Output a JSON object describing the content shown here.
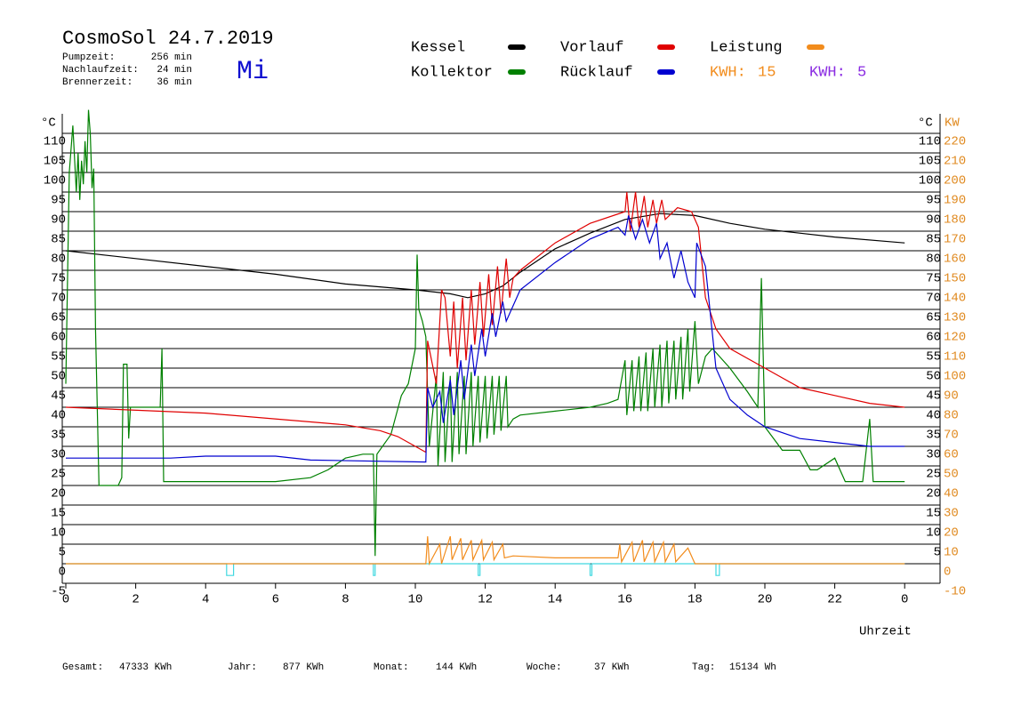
{
  "chart_data": {
    "type": "line",
    "title": "CosmoSol 24.7.2019",
    "weekday": "Mi",
    "info": [
      {
        "label": "Pumpzeit:",
        "value": "256 min"
      },
      {
        "label": "Nachlaufzeit:",
        "value": "24 min"
      },
      {
        "label": "Brennerzeit:",
        "value": "36 min"
      }
    ],
    "kwh": [
      {
        "label": "KWH:",
        "value": 15,
        "color": "#f28c1c"
      },
      {
        "label": "KWH:",
        "value": 5,
        "color": "#8a2be2"
      }
    ],
    "x_label": "Uhrzeit",
    "y_label": "°C",
    "y2_label": "KW",
    "xlim": [
      0,
      25
    ],
    "xticks": [
      0,
      2,
      4,
      6,
      8,
      10,
      12,
      14,
      16,
      18,
      20,
      22,
      {
        "value": 24,
        "label": "0"
      }
    ],
    "ylim": [
      -5,
      115
    ],
    "yticks": [
      110,
      105,
      100,
      95,
      90,
      85,
      80,
      75,
      70,
      65,
      60,
      55,
      50,
      45,
      40,
      35,
      30,
      25,
      20,
      15,
      10,
      5,
      0,
      -5
    ],
    "yticks_right": [
      110,
      105,
      100,
      95,
      90,
      85,
      80,
      75,
      70,
      65,
      60,
      55,
      50,
      45,
      40,
      35,
      30,
      25,
      20,
      15,
      10,
      5
    ],
    "y2lim": [
      -10,
      230
    ],
    "y2ticks": [
      220,
      210,
      200,
      190,
      180,
      170,
      160,
      150,
      140,
      130,
      120,
      110,
      100,
      90,
      80,
      70,
      60,
      50,
      40,
      30,
      20,
      10,
      0,
      -10
    ],
    "grid": true,
    "series": [
      {
        "name": "Kessel",
        "color": "#000000",
        "x": [
          0,
          2,
          4,
          6,
          8,
          10,
          11,
          11.5,
          12,
          12.5,
          13,
          14,
          15,
          16,
          17,
          18,
          19,
          20,
          22,
          24
        ],
        "values": [
          80,
          78,
          76,
          74,
          71.5,
          70,
          69,
          68,
          69,
          71,
          74.5,
          80.5,
          84.5,
          88,
          89.5,
          89,
          87,
          85.5,
          83.5,
          82
        ]
      },
      {
        "name": "Kollektor",
        "color": "#008000",
        "x": [
          0,
          0.1,
          0.2,
          0.3,
          0.35,
          0.4,
          0.45,
          0.5,
          0.55,
          0.6,
          0.65,
          0.7,
          0.75,
          0.8,
          0.85,
          0.95,
          1.5,
          1.6,
          1.65,
          1.75,
          1.8,
          1.85,
          1.9,
          2.7,
          2.75,
          2.8,
          4,
          6,
          7,
          7.5,
          8,
          8.5,
          8.8,
          8.85,
          8.9,
          9.3,
          9.6,
          9.8,
          10,
          10.05,
          10.1,
          10.2,
          10.3,
          10.4,
          10.6,
          10.65,
          10.8,
          10.85,
          11,
          11.05,
          11.2,
          11.25,
          11.4,
          11.45,
          11.6,
          11.65,
          11.8,
          11.85,
          12,
          12.05,
          12.2,
          12.25,
          12.4,
          12.45,
          12.6,
          12.65,
          12.8,
          13,
          14,
          15,
          15.5,
          15.8,
          16,
          16.05,
          16.2,
          16.25,
          16.4,
          16.45,
          16.6,
          16.65,
          16.8,
          16.85,
          17,
          17.05,
          17.2,
          17.25,
          17.4,
          17.45,
          17.6,
          17.65,
          17.8,
          17.85,
          18,
          18.1,
          18.3,
          18.5,
          19,
          19.5,
          19.8,
          19.9,
          20,
          20.5,
          20.8,
          21,
          21.3,
          21.5,
          22,
          22.3,
          22.8,
          23,
          23.1,
          24
        ],
        "values": [
          46,
          100,
          112,
          95,
          105,
          93,
          103,
          97,
          108,
          100,
          116,
          110,
          96,
          101,
          60,
          20,
          20,
          22,
          51,
          51,
          32,
          40,
          40,
          40,
          55,
          21,
          21,
          21,
          22,
          24,
          27,
          28,
          28,
          2,
          28,
          33,
          43,
          46,
          55,
          79,
          65,
          62,
          58,
          30,
          48,
          25,
          49,
          26,
          48,
          26,
          49,
          28,
          48,
          28,
          49,
          30,
          48,
          31,
          48,
          32,
          48,
          33,
          48,
          34,
          48,
          35,
          37,
          38,
          39,
          40,
          41,
          42,
          52,
          38,
          52,
          39,
          53,
          39,
          54,
          39,
          55,
          40,
          56,
          40,
          57,
          41,
          57,
          42,
          58,
          42,
          60,
          44,
          62,
          46,
          53,
          55,
          50,
          44,
          40,
          73,
          35,
          29,
          29,
          29,
          24,
          24,
          27,
          21,
          21,
          37,
          21,
          21
        ]
      },
      {
        "name": "Vorlauf",
        "color": "#e00000",
        "x": [
          0,
          4,
          8,
          9,
          9.5,
          10,
          10.3,
          10.35,
          10.6,
          10.75,
          10.85,
          11,
          11.1,
          11.2,
          11.35,
          11.45,
          11.6,
          11.7,
          11.85,
          11.95,
          12.1,
          12.2,
          12.35,
          12.45,
          12.6,
          12.7,
          12.8,
          13,
          14,
          15,
          16,
          16.05,
          16.15,
          16.3,
          16.4,
          16.55,
          16.65,
          16.8,
          16.9,
          17.05,
          17.15,
          17.5,
          17.9,
          18.1,
          18.3,
          18.6,
          19,
          20,
          21,
          22,
          23,
          24
        ],
        "values": [
          40,
          38.5,
          35.5,
          34,
          32.5,
          30,
          28.5,
          57,
          46,
          70,
          68,
          53,
          67,
          50,
          68,
          52,
          70,
          56,
          72,
          58,
          74,
          61,
          76,
          64,
          78,
          68,
          73,
          75,
          82,
          87,
          90,
          95,
          85,
          95,
          86,
          94,
          86,
          93,
          87,
          93,
          88,
          91,
          90,
          86,
          68,
          60,
          55,
          50,
          45,
          43,
          41,
          40
        ]
      },
      {
        "name": "Rücklauf",
        "color": "#0000d0",
        "x": [
          0,
          3,
          4,
          6,
          7,
          10.3,
          10.35,
          10.5,
          10.7,
          10.8,
          11,
          11.1,
          11.3,
          11.4,
          11.6,
          11.7,
          11.9,
          12,
          12.2,
          12.3,
          12.5,
          12.6,
          13,
          14,
          15,
          15.8,
          16,
          16.1,
          16.3,
          16.5,
          16.7,
          16.9,
          17,
          17.2,
          17.4,
          17.6,
          17.8,
          18,
          18.05,
          18.3,
          18.6,
          19,
          19.5,
          20,
          21,
          22,
          23,
          24
        ],
        "values": [
          27,
          27,
          27.5,
          27.5,
          26.5,
          26,
          45,
          40,
          44,
          36,
          47,
          38,
          52,
          42,
          56,
          48,
          60,
          53,
          64,
          58,
          67,
          62,
          70,
          77,
          83,
          86,
          84,
          89,
          83,
          88,
          82,
          87,
          78,
          82,
          73,
          80,
          72,
          68,
          82,
          76,
          50,
          42,
          38,
          35,
          32,
          31,
          30,
          30
        ]
      },
      {
        "name": "Leistung",
        "color": "#f28c1c",
        "axis": "y2",
        "x": [
          0,
          10.3,
          10.35,
          10.4,
          10.7,
          10.75,
          11,
          11.05,
          11.3,
          11.35,
          11.6,
          11.65,
          11.9,
          11.95,
          12.2,
          12.25,
          12.5,
          12.55,
          12.8,
          14,
          15.8,
          15.85,
          15.9,
          16.2,
          16.25,
          16.5,
          16.55,
          16.8,
          16.85,
          17.1,
          17.15,
          17.4,
          17.45,
          17.8,
          18,
          24
        ],
        "values": [
          0,
          0,
          14,
          0,
          10,
          0,
          14,
          2,
          13,
          2,
          12,
          2,
          12,
          2,
          11,
          2,
          10,
          3,
          4,
          3,
          3,
          10,
          1,
          11,
          1,
          12,
          1,
          11,
          1,
          11,
          1,
          10,
          1,
          8,
          0,
          0
        ]
      }
    ],
    "pump": {
      "color": "#40d8e0",
      "x": [
        0,
        4.6,
        4.6,
        4.8,
        4.8,
        8.8,
        8.8,
        8.85,
        8.85,
        11.8,
        11.8,
        11.85,
        11.85,
        15,
        15,
        15.05,
        15.05,
        18.6,
        18.6,
        18.7,
        18.7,
        24
      ],
      "values": [
        0,
        0,
        -3,
        -3,
        0,
        0,
        -3,
        -3,
        0,
        0,
        -3,
        -3,
        0,
        0,
        -3,
        -3,
        0,
        0,
        -3,
        -3,
        0,
        0
      ]
    },
    "totals": [
      {
        "label": "Gesamt:",
        "value": "47333 KWh"
      },
      {
        "label": "Jahr:",
        "value": "877 KWh"
      },
      {
        "label": "Monat:",
        "value": "144 KWh"
      },
      {
        "label": "Woche:",
        "value": "37 KWh"
      },
      {
        "label": "Tag:",
        "value": "15134 Wh"
      }
    ]
  }
}
